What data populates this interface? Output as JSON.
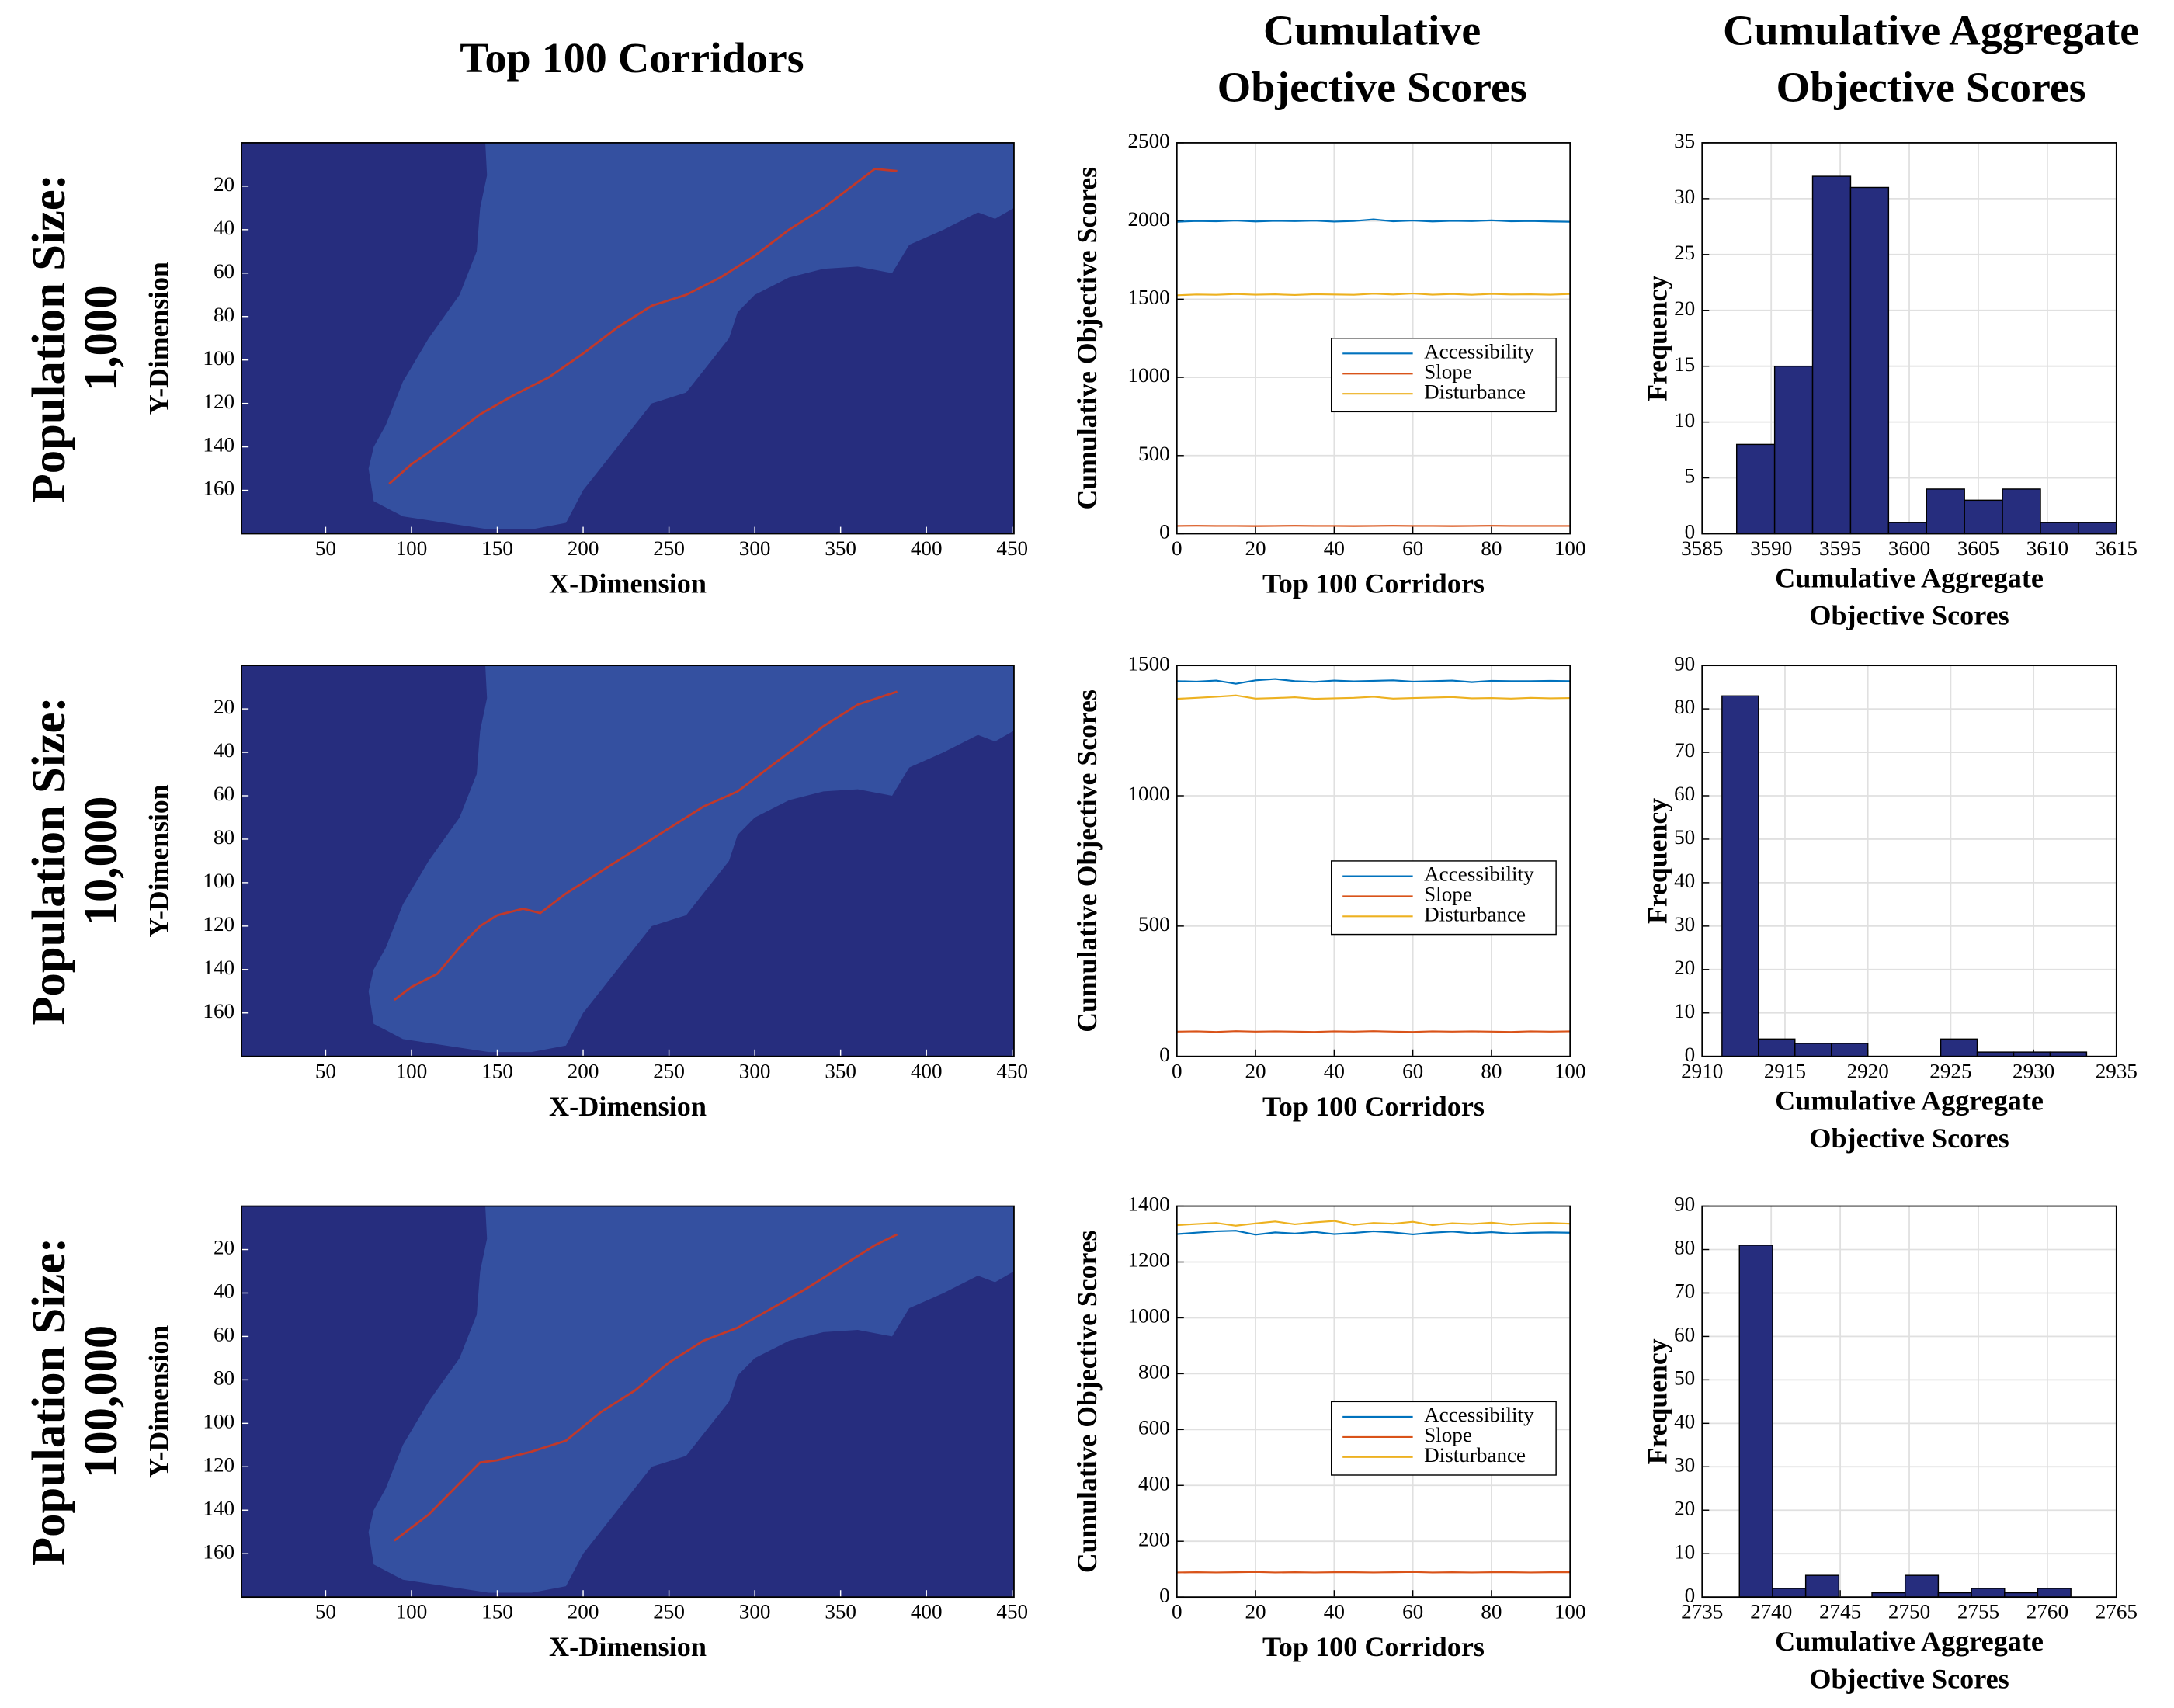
{
  "column_titles": [
    [
      "Top 100 Corridors"
    ],
    [
      "Cumulative",
      "Objective Scores"
    ],
    [
      "Cumulative Aggregate",
      "Objective Scores"
    ]
  ],
  "row_labels": [
    [
      "Population Size:",
      "1,000"
    ],
    [
      "Population Size:",
      "10,000"
    ],
    [
      "Population Size:",
      "100,000"
    ]
  ],
  "chart_data": [
    {
      "type": "corridor",
      "x": [
        87,
        100,
        120,
        140,
        160,
        180,
        200,
        220,
        240,
        260,
        280,
        300,
        320,
        340,
        360,
        370,
        383
      ],
      "values": [
        157,
        148,
        137,
        125,
        116,
        108,
        97,
        85,
        75,
        70,
        62,
        52,
        40,
        30,
        18,
        12,
        13
      ],
      "color": "#c0392b",
      "xlim": [
        1,
        451
      ],
      "ylim": [
        0,
        180
      ],
      "y_reversed": true,
      "xticks": [
        50,
        100,
        150,
        200,
        250,
        300,
        350,
        400,
        450
      ],
      "yticks": [
        20,
        40,
        60,
        80,
        100,
        120,
        140,
        160
      ],
      "xlabel": "X-Dimension",
      "ylabel": "Y-Dimension"
    },
    {
      "type": "line",
      "x": [
        0,
        5,
        10,
        15,
        20,
        25,
        30,
        35,
        40,
        45,
        50,
        55,
        60,
        65,
        70,
        75,
        80,
        85,
        90,
        95,
        100
      ],
      "series": [
        {
          "name": "Accessibility",
          "color": "#0072bd",
          "values": [
            1995,
            2000,
            1998,
            2003,
            1997,
            2001,
            1999,
            2002,
            1996,
            2000,
            2010,
            1998,
            2003,
            1997,
            2001,
            1999,
            2004,
            1998,
            2000,
            1997,
            1995
          ]
        },
        {
          "name": "Slope",
          "color": "#d95319",
          "values": [
            50,
            51,
            50,
            50,
            49,
            50,
            51,
            50,
            50,
            49,
            50,
            51,
            50,
            50,
            49,
            50,
            51,
            50,
            50,
            50,
            50
          ]
        },
        {
          "name": "Disturbance",
          "color": "#edb120",
          "values": [
            1525,
            1530,
            1528,
            1533,
            1529,
            1531,
            1527,
            1532,
            1530,
            1528,
            1535,
            1530,
            1536,
            1529,
            1533,
            1528,
            1534,
            1530,
            1531,
            1529,
            1533
          ]
        }
      ],
      "xlim": [
        0,
        100
      ],
      "ylim": [
        0,
        2500
      ],
      "xticks": [
        0,
        20,
        40,
        60,
        80,
        100
      ],
      "yticks": [
        0,
        500,
        1000,
        1500,
        2000,
        2500
      ],
      "xlabel": "Top 100 Corridors",
      "ylabel": "Cumulative Objective Scores",
      "grid": true,
      "legend": "right"
    },
    {
      "type": "histogram",
      "bins": [
        3587.5,
        3590.25,
        3593,
        3595.75,
        3598.5,
        3601.25,
        3604,
        3606.75,
        3609.5,
        3612.25,
        3615
      ],
      "values": [
        8,
        15,
        32,
        31,
        1,
        4,
        3,
        4,
        1,
        1
      ],
      "color": "#262d7e",
      "xlim": [
        3585,
        3615
      ],
      "ylim": [
        0,
        35
      ],
      "xticks": [
        3585,
        3590,
        3595,
        3600,
        3605,
        3610,
        3615
      ],
      "yticks": [
        0,
        5,
        10,
        15,
        20,
        25,
        30,
        35
      ],
      "xlabel": [
        "Cumulative Aggregate",
        "Objective Scores"
      ],
      "ylabel": "Frequency",
      "grid": true
    },
    {
      "type": "corridor",
      "x": [
        90,
        100,
        115,
        130,
        140,
        150,
        165,
        175,
        190,
        210,
        230,
        250,
        270,
        290,
        300,
        320,
        340,
        360,
        383
      ],
      "values": [
        154,
        148,
        142,
        128,
        120,
        115,
        112,
        114,
        105,
        95,
        85,
        75,
        65,
        58,
        52,
        40,
        28,
        18,
        12
      ],
      "color": "#c0392b",
      "xlim": [
        1,
        451
      ],
      "ylim": [
        0,
        180
      ],
      "y_reversed": true,
      "xticks": [
        50,
        100,
        150,
        200,
        250,
        300,
        350,
        400,
        450
      ],
      "yticks": [
        20,
        40,
        60,
        80,
        100,
        120,
        140,
        160
      ],
      "xlabel": "X-Dimension",
      "ylabel": "Y-Dimension"
    },
    {
      "type": "line",
      "x": [
        0,
        5,
        10,
        15,
        20,
        25,
        30,
        35,
        40,
        45,
        50,
        55,
        60,
        65,
        70,
        75,
        80,
        85,
        90,
        95,
        100
      ],
      "series": [
        {
          "name": "Accessibility",
          "color": "#0072bd",
          "values": [
            1440,
            1438,
            1442,
            1430,
            1443,
            1448,
            1440,
            1437,
            1442,
            1439,
            1441,
            1443,
            1438,
            1440,
            1442,
            1436,
            1441,
            1440,
            1440,
            1441,
            1440
          ]
        },
        {
          "name": "Slope",
          "color": "#d95319",
          "values": [
            95,
            96,
            94,
            97,
            95,
            96,
            95,
            94,
            96,
            95,
            97,
            95,
            94,
            96,
            95,
            96,
            95,
            94,
            96,
            95,
            96
          ]
        },
        {
          "name": "Disturbance",
          "color": "#edb120",
          "values": [
            1372,
            1376,
            1380,
            1385,
            1373,
            1375,
            1378,
            1372,
            1374,
            1376,
            1380,
            1373,
            1375,
            1377,
            1379,
            1374,
            1375,
            1373,
            1376,
            1374,
            1375
          ]
        }
      ],
      "xlim": [
        0,
        100
      ],
      "ylim": [
        0,
        1500
      ],
      "xticks": [
        0,
        20,
        40,
        60,
        80,
        100
      ],
      "yticks": [
        0,
        500,
        1000,
        1500
      ],
      "xlabel": "Top 100 Corridors",
      "ylabel": "Cumulative Objective Scores",
      "grid": true,
      "legend": "right"
    },
    {
      "type": "histogram",
      "bins": [
        2911.2,
        2913.4,
        2915.6,
        2917.8,
        2920,
        2922.2,
        2924.4,
        2926.6,
        2928.8,
        2931,
        2933.2
      ],
      "values": [
        83,
        4,
        3,
        3,
        0,
        0,
        4,
        1,
        1,
        1
      ],
      "color": "#262d7e",
      "xlim": [
        2910,
        2935
      ],
      "ylim": [
        0,
        90
      ],
      "xticks": [
        2910,
        2915,
        2920,
        2925,
        2930,
        2935
      ],
      "yticks": [
        0,
        10,
        20,
        30,
        40,
        50,
        60,
        70,
        80,
        90
      ],
      "xlabel": [
        "Cumulative Aggregate",
        "Objective Scores"
      ],
      "ylabel": "Frequency",
      "grid": true
    },
    {
      "type": "corridor",
      "x": [
        90,
        100,
        110,
        125,
        140,
        150,
        170,
        190,
        210,
        230,
        250,
        270,
        290,
        310,
        330,
        350,
        370,
        383
      ],
      "values": [
        154,
        148,
        142,
        130,
        118,
        117,
        113,
        108,
        95,
        85,
        72,
        62,
        56,
        47,
        38,
        28,
        18,
        13
      ],
      "color": "#c0392b",
      "xlim": [
        1,
        451
      ],
      "ylim": [
        0,
        180
      ],
      "y_reversed": true,
      "xticks": [
        50,
        100,
        150,
        200,
        250,
        300,
        350,
        400,
        450
      ],
      "yticks": [
        20,
        40,
        60,
        80,
        100,
        120,
        140,
        160
      ],
      "xlabel": "X-Dimension",
      "ylabel": "Y-Dimension"
    },
    {
      "type": "line",
      "x": [
        0,
        5,
        10,
        15,
        20,
        25,
        30,
        35,
        40,
        45,
        50,
        55,
        60,
        65,
        70,
        75,
        80,
        85,
        90,
        95,
        100
      ],
      "series": [
        {
          "name": "Accessibility",
          "color": "#0072bd",
          "values": [
            1300,
            1305,
            1310,
            1312,
            1298,
            1306,
            1302,
            1308,
            1300,
            1304,
            1310,
            1306,
            1299,
            1305,
            1309,
            1303,
            1307,
            1302,
            1305,
            1306,
            1305
          ]
        },
        {
          "name": "Slope",
          "color": "#d95319",
          "values": [
            88,
            89,
            88,
            89,
            90,
            88,
            89,
            88,
            89,
            89,
            88,
            89,
            90,
            88,
            89,
            88,
            89,
            89,
            88,
            89,
            89
          ]
        },
        {
          "name": "Disturbance",
          "color": "#edb120",
          "values": [
            1332,
            1336,
            1340,
            1330,
            1338,
            1345,
            1335,
            1342,
            1347,
            1333,
            1340,
            1337,
            1344,
            1332,
            1339,
            1336,
            1341,
            1334,
            1338,
            1340,
            1337
          ]
        }
      ],
      "xlim": [
        0,
        100
      ],
      "ylim": [
        0,
        1400
      ],
      "xticks": [
        0,
        20,
        40,
        60,
        80,
        100
      ],
      "yticks": [
        0,
        200,
        400,
        600,
        800,
        1000,
        1200,
        1400
      ],
      "xlabel": "Top 100 Corridors",
      "ylabel": "Cumulative Objective Scores",
      "grid": true,
      "legend": "right"
    },
    {
      "type": "histogram",
      "bins": [
        2737.7,
        2740.1,
        2742.5,
        2744.9,
        2747.3,
        2749.7,
        2752.1,
        2754.5,
        2756.9,
        2759.3,
        2761.7
      ],
      "values": [
        81,
        2,
        5,
        0,
        1,
        5,
        1,
        2,
        1,
        2
      ],
      "color": "#262d7e",
      "xlim": [
        2735,
        2765
      ],
      "ylim": [
        0,
        90
      ],
      "xticks": [
        2735,
        2740,
        2745,
        2750,
        2755,
        2760,
        2765
      ],
      "yticks": [
        0,
        10,
        20,
        30,
        40,
        50,
        60,
        70,
        80,
        90
      ],
      "xlabel": [
        "Cumulative Aggregate",
        "Objective Scores"
      ],
      "ylabel": "Frequency",
      "grid": true
    }
  ]
}
